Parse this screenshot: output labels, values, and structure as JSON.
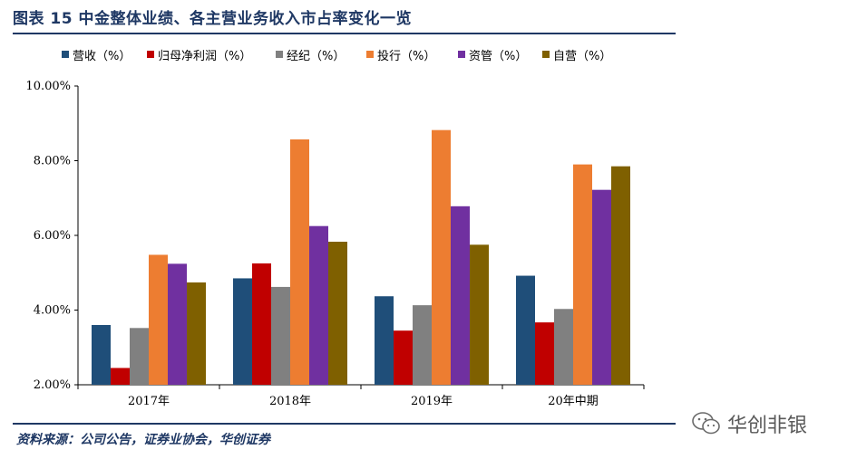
{
  "figure": {
    "title": "图表 15   中金整体业绩、各主营业务收入市占率变化一览",
    "source": "资料来源：公司公告，证券业协会，华创证券",
    "watermark": "华创非银"
  },
  "chart_data": {
    "type": "bar",
    "title": "中金整体业绩、各主营业务收入市占率变化一览",
    "categories": [
      "2017年",
      "2018年",
      "2019年",
      "20年中期"
    ],
    "ylim": [
      2.0,
      10.0
    ],
    "yticks": [
      "2.00%",
      "4.00%",
      "6.00%",
      "8.00%",
      "10.00%"
    ],
    "ytick_values": [
      2,
      4,
      6,
      8,
      10
    ],
    "legend_position": "top",
    "series": [
      {
        "name": "营收（%）",
        "color": "#1f4e79",
        "values": [
          3.6,
          4.85,
          4.37,
          4.92
        ]
      },
      {
        "name": "归母净利润（%）",
        "color": "#c00000",
        "values": [
          2.45,
          5.25,
          3.45,
          3.67
        ]
      },
      {
        "name": "经纪（%）",
        "color": "#808080",
        "values": [
          3.52,
          4.62,
          4.13,
          4.03
        ]
      },
      {
        "name": "投行（%）",
        "color": "#ed7d31",
        "values": [
          5.48,
          8.57,
          8.82,
          7.9
        ]
      },
      {
        "name": "资管（%）",
        "color": "#7030a0",
        "values": [
          5.24,
          6.25,
          6.78,
          7.22
        ]
      },
      {
        "name": "自营（%）",
        "color": "#7f6000",
        "values": [
          4.74,
          5.83,
          5.75,
          7.85
        ]
      }
    ]
  }
}
